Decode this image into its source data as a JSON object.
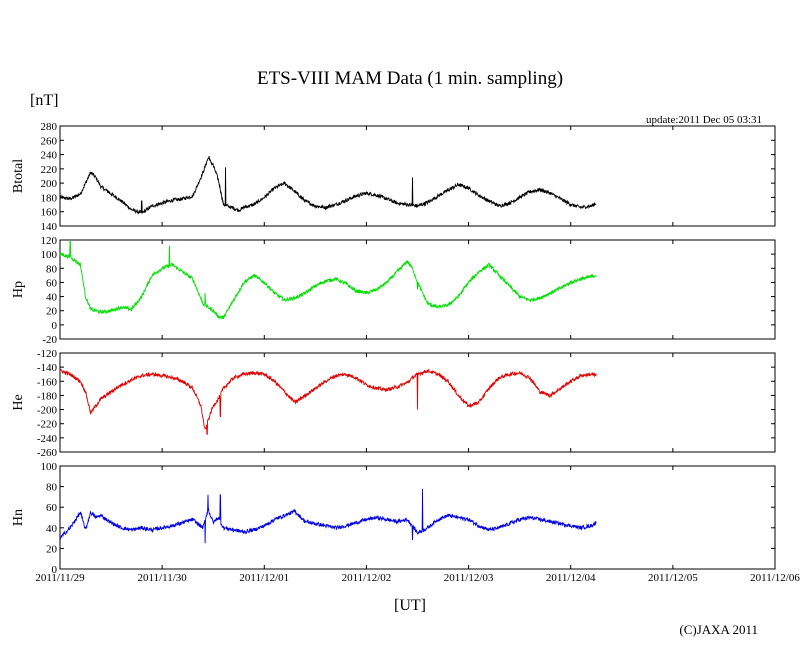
{
  "title": "ETS-VIII MAM Data (1 min. sampling)",
  "unit_label": "[nT]",
  "update_text": "update:2011 Dec 05 03:31",
  "x_axis_label": "[UT]",
  "copyright": "(C)JAXA 2011",
  "x_ticks": [
    "2011/11/29",
    "2011/11/30",
    "2011/12/01",
    "2011/12/02",
    "2011/12/03",
    "2011/12/04",
    "2011/12/05",
    "2011/12/06"
  ],
  "chart_data": [
    {
      "type": "line",
      "name": "Btotal",
      "ylabel": "Btotal",
      "color": "#000000",
      "ylim": [
        140,
        280
      ],
      "yticks": [
        140,
        160,
        180,
        200,
        220,
        240,
        260,
        280
      ],
      "xlim_days": [
        0,
        7
      ],
      "x_days": [
        0,
        0.1,
        0.2,
        0.25,
        0.3,
        0.35,
        0.4,
        0.5,
        0.6,
        0.7,
        0.8,
        0.9,
        1.0,
        1.1,
        1.2,
        1.3,
        1.4,
        1.45,
        1.5,
        1.55,
        1.6,
        1.7,
        1.75,
        1.8,
        1.9,
        2.0,
        2.1,
        2.2,
        2.3,
        2.4,
        2.5,
        2.6,
        2.7,
        2.8,
        2.9,
        3.0,
        3.1,
        3.2,
        3.3,
        3.4,
        3.5,
        3.6,
        3.7,
        3.8,
        3.9,
        4.0,
        4.1,
        4.2,
        4.3,
        4.4,
        4.5,
        4.6,
        4.7,
        4.8,
        4.9,
        5.0,
        5.1,
        5.2,
        5.25
      ],
      "values": [
        180,
        178,
        185,
        200,
        215,
        208,
        195,
        185,
        175,
        163,
        158,
        168,
        172,
        176,
        178,
        182,
        215,
        235,
        225,
        205,
        170,
        165,
        162,
        166,
        170,
        180,
        193,
        200,
        188,
        175,
        168,
        166,
        170,
        176,
        182,
        186,
        183,
        178,
        172,
        170,
        168,
        173,
        182,
        190,
        198,
        193,
        183,
        175,
        168,
        172,
        180,
        188,
        191,
        186,
        178,
        170,
        166,
        168,
        172
      ],
      "spikes": [
        [
          0.8,
          175
        ],
        [
          1.46,
          238
        ],
        [
          1.62,
          222
        ],
        [
          3.45,
          208
        ]
      ]
    },
    {
      "type": "line",
      "name": "Hp",
      "ylabel": "Hp",
      "color": "#00e000",
      "ylim": [
        -20,
        120
      ],
      "yticks": [
        -20,
        0,
        20,
        40,
        60,
        80,
        100,
        120
      ],
      "xlim_days": [
        0,
        7
      ],
      "x_days": [
        0,
        0.05,
        0.1,
        0.2,
        0.25,
        0.3,
        0.4,
        0.5,
        0.6,
        0.7,
        0.8,
        0.9,
        1.0,
        1.1,
        1.2,
        1.3,
        1.4,
        1.45,
        1.5,
        1.55,
        1.6,
        1.7,
        1.8,
        1.9,
        2.0,
        2.1,
        2.2,
        2.3,
        2.4,
        2.5,
        2.6,
        2.7,
        2.8,
        2.9,
        3.0,
        3.1,
        3.2,
        3.3,
        3.4,
        3.45,
        3.5,
        3.6,
        3.7,
        3.8,
        3.9,
        4.0,
        4.1,
        4.2,
        4.3,
        4.4,
        4.5,
        4.6,
        4.7,
        4.8,
        4.9,
        5.0,
        5.1,
        5.2,
        5.25
      ],
      "values": [
        100,
        98,
        96,
        85,
        40,
        22,
        18,
        20,
        25,
        22,
        40,
        70,
        80,
        85,
        75,
        65,
        30,
        25,
        20,
        12,
        10,
        35,
        60,
        70,
        60,
        45,
        35,
        38,
        45,
        55,
        62,
        65,
        58,
        48,
        45,
        50,
        60,
        75,
        90,
        80,
        60,
        30,
        25,
        28,
        40,
        60,
        75,
        85,
        70,
        55,
        40,
        35,
        38,
        45,
        52,
        60,
        65,
        68,
        70
      ],
      "spikes": [
        [
          0.1,
          118
        ],
        [
          1.07,
          112
        ],
        [
          1.42,
          45
        ],
        [
          3.5,
          50
        ]
      ]
    },
    {
      "type": "line",
      "name": "He",
      "ylabel": "He",
      "color": "#e00000",
      "ylim": [
        -260,
        -120
      ],
      "yticks": [
        -260,
        -240,
        -220,
        -200,
        -180,
        -160,
        -140,
        -120
      ],
      "xlim_days": [
        0,
        7
      ],
      "x_days": [
        0,
        0.1,
        0.2,
        0.25,
        0.3,
        0.35,
        0.4,
        0.5,
        0.6,
        0.7,
        0.8,
        0.9,
        1.0,
        1.1,
        1.2,
        1.3,
        1.38,
        1.42,
        1.45,
        1.5,
        1.55,
        1.6,
        1.7,
        1.8,
        1.9,
        2.0,
        2.1,
        2.2,
        2.3,
        2.4,
        2.5,
        2.6,
        2.7,
        2.8,
        2.9,
        3.0,
        3.1,
        3.2,
        3.3,
        3.4,
        3.45,
        3.5,
        3.6,
        3.7,
        3.8,
        3.9,
        4.0,
        4.1,
        4.2,
        4.3,
        4.4,
        4.5,
        4.6,
        4.7,
        4.8,
        4.9,
        5.0,
        5.1,
        5.2,
        5.25
      ],
      "values": [
        -145,
        -150,
        -160,
        -175,
        -205,
        -195,
        -185,
        -175,
        -165,
        -158,
        -152,
        -150,
        -152,
        -155,
        -160,
        -170,
        -195,
        -230,
        -215,
        -195,
        -185,
        -170,
        -155,
        -150,
        -148,
        -150,
        -160,
        -175,
        -190,
        -180,
        -170,
        -160,
        -152,
        -150,
        -155,
        -165,
        -170,
        -172,
        -168,
        -162,
        -155,
        -150,
        -145,
        -150,
        -160,
        -180,
        -195,
        -190,
        -170,
        -155,
        -150,
        -148,
        -155,
        -175,
        -180,
        -170,
        -160,
        -152,
        -150,
        -152
      ],
      "spikes": [
        [
          1.44,
          -235
        ],
        [
          1.57,
          -210
        ],
        [
          3.5,
          -200
        ]
      ]
    },
    {
      "type": "line",
      "name": "Hn",
      "ylabel": "Hn",
      "color": "#0000e0",
      "ylim": [
        0,
        100
      ],
      "yticks": [
        0,
        20,
        40,
        60,
        80,
        100
      ],
      "xlim_days": [
        0,
        7
      ],
      "x_days": [
        0,
        0.1,
        0.2,
        0.25,
        0.3,
        0.35,
        0.4,
        0.5,
        0.6,
        0.7,
        0.8,
        0.9,
        1.0,
        1.1,
        1.2,
        1.3,
        1.4,
        1.45,
        1.5,
        1.55,
        1.6,
        1.7,
        1.8,
        1.9,
        2.0,
        2.1,
        2.2,
        2.3,
        2.4,
        2.5,
        2.6,
        2.7,
        2.8,
        2.9,
        3.0,
        3.1,
        3.2,
        3.3,
        3.4,
        3.45,
        3.5,
        3.6,
        3.7,
        3.8,
        3.9,
        4.0,
        4.1,
        4.2,
        4.3,
        4.4,
        4.5,
        4.6,
        4.7,
        4.8,
        4.9,
        5.0,
        5.1,
        5.2,
        5.25
      ],
      "values": [
        30,
        40,
        55,
        38,
        55,
        50,
        52,
        45,
        40,
        38,
        40,
        38,
        40,
        42,
        45,
        48,
        40,
        58,
        45,
        50,
        40,
        38,
        36,
        38,
        42,
        48,
        52,
        56,
        46,
        44,
        42,
        40,
        42,
        45,
        48,
        50,
        48,
        46,
        48,
        42,
        35,
        40,
        48,
        52,
        50,
        48,
        42,
        38,
        40,
        44,
        48,
        50,
        48,
        46,
        44,
        42,
        40,
        42,
        45
      ],
      "spikes": [
        [
          1.42,
          25
        ],
        [
          1.45,
          72
        ],
        [
          1.57,
          72
        ],
        [
          3.45,
          28
        ],
        [
          3.55,
          78
        ]
      ]
    }
  ]
}
